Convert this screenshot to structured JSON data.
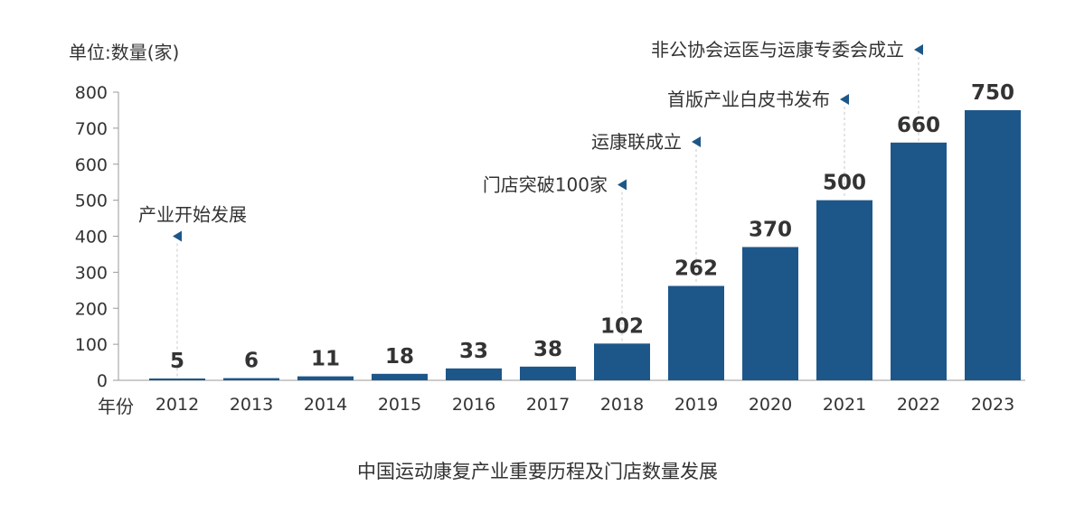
{
  "unit_label": "单位:数量(家)",
  "x_prefix": "年份",
  "caption": "中国运动康复产业重要历程及门店数量发展",
  "colors": {
    "bar": "#1d578a",
    "axis": "#9a9a9a",
    "text": "#333333",
    "label": "#333333",
    "marker": "#1d578a",
    "guide": "#c8c8c8"
  },
  "chart_data": {
    "type": "bar",
    "categories": [
      "2012",
      "2013",
      "2014",
      "2015",
      "2016",
      "2017",
      "2018",
      "2019",
      "2020",
      "2021",
      "2022",
      "2023"
    ],
    "values": [
      5,
      6,
      11,
      18,
      33,
      38,
      102,
      262,
      370,
      500,
      660,
      750
    ],
    "ylim": [
      0,
      800
    ],
    "yticks": [
      0,
      100,
      200,
      300,
      400,
      500,
      600,
      700,
      800
    ],
    "grid": false,
    "annotations": [
      {
        "text": "产业开始发展",
        "year": "2012",
        "value": 400
      },
      {
        "text": "门店突破100家",
        "year": "2018",
        "value": 543
      },
      {
        "text": "运康联成立",
        "year": "2019",
        "value": 662
      },
      {
        "text": "首版产业白皮书发布",
        "year": "2021",
        "value": 780
      },
      {
        "text": "非公协会运医与运康专委会成立",
        "year": "2022",
        "value": 918
      }
    ]
  }
}
